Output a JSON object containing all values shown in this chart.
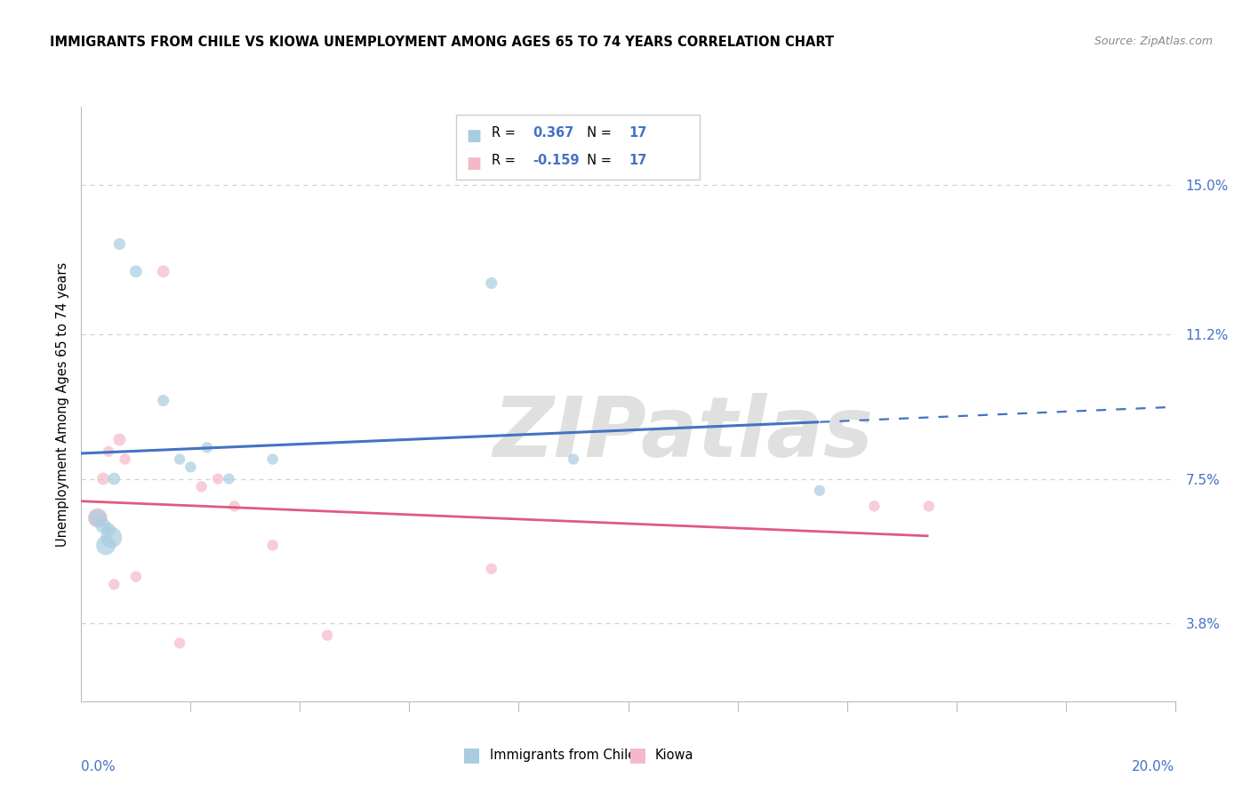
{
  "title": "IMMIGRANTS FROM CHILE VS KIOWA UNEMPLOYMENT AMONG AGES 65 TO 74 YEARS CORRELATION CHART",
  "source": "Source: ZipAtlas.com",
  "ylabel": "Unemployment Among Ages 65 to 74 years",
  "ytick_values": [
    3.8,
    7.5,
    11.2,
    15.0
  ],
  "xlim": [
    0.0,
    20.0
  ],
  "ylim": [
    1.8,
    17.0
  ],
  "R_blue": 0.367,
  "N_blue": 17,
  "R_pink": -0.159,
  "N_pink": 17,
  "blue_color": "#a8cce0",
  "pink_color": "#f4b8c8",
  "blue_line_color": "#4472c4",
  "pink_line_color": "#e05a80",
  "legend_label_blue": "Immigrants from Chile",
  "legend_label_pink": "Kiowa",
  "blue_scatter_x": [
    0.3,
    0.4,
    0.5,
    0.55,
    0.6,
    0.7,
    1.0,
    1.5,
    1.8,
    2.0,
    2.3,
    2.7,
    3.5,
    7.5,
    9.0,
    13.5,
    0.45
  ],
  "blue_scatter_y": [
    6.5,
    6.3,
    6.2,
    6.0,
    7.5,
    13.5,
    12.8,
    9.5,
    8.0,
    7.8,
    8.3,
    7.5,
    8.0,
    12.5,
    8.0,
    7.2,
    5.8
  ],
  "blue_scatter_sizes": [
    200,
    150,
    120,
    300,
    100,
    90,
    100,
    90,
    80,
    80,
    80,
    80,
    80,
    90,
    80,
    80,
    250
  ],
  "pink_scatter_x": [
    0.3,
    0.4,
    0.5,
    0.7,
    0.8,
    1.5,
    1.8,
    2.2,
    2.5,
    2.8,
    3.5,
    4.5,
    7.5,
    14.5,
    15.5,
    1.0,
    0.6
  ],
  "pink_scatter_y": [
    6.5,
    7.5,
    8.2,
    8.5,
    8.0,
    12.8,
    3.3,
    7.3,
    7.5,
    6.8,
    5.8,
    3.5,
    5.2,
    6.8,
    6.8,
    5.0,
    4.8
  ],
  "pink_scatter_sizes": [
    250,
    100,
    80,
    100,
    80,
    100,
    80,
    80,
    80,
    80,
    80,
    80,
    80,
    80,
    80,
    80,
    80
  ],
  "watermark": "ZIPatlas",
  "watermark_color": "#e0e0e0",
  "background_color": "#ffffff",
  "grid_color": "#d0d0d0",
  "legend_box_color": "#ffffff",
  "legend_border_color": "#cccccc",
  "value_color": "#4472c4",
  "text_color_black": "#222222"
}
